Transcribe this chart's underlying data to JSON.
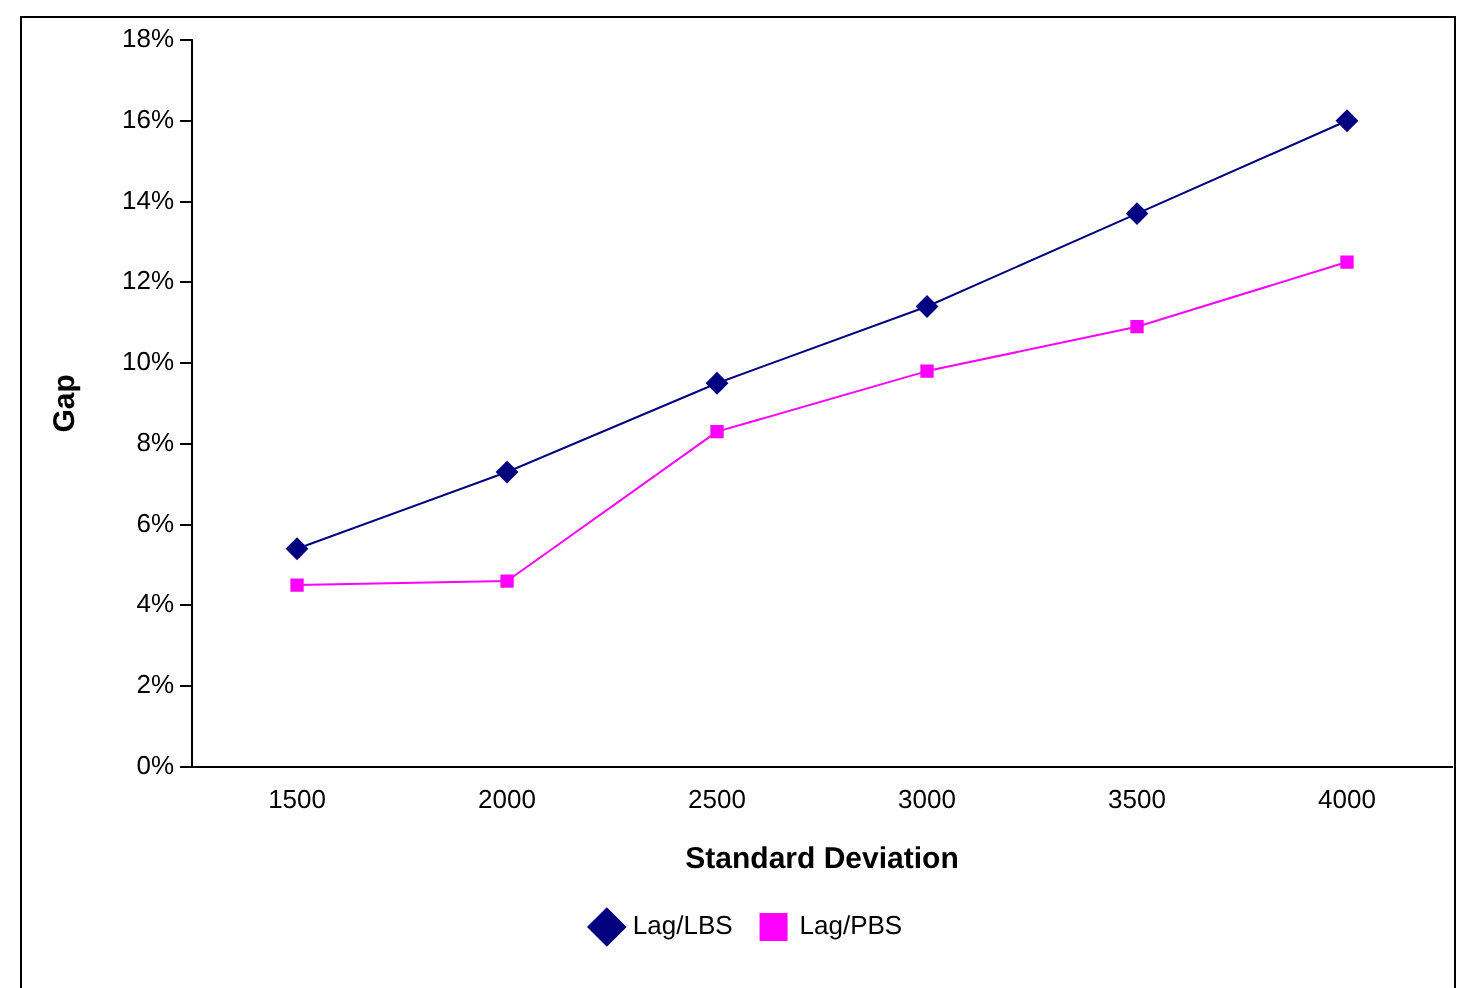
{
  "chart_data": {
    "type": "line",
    "xlabel": "Standard Deviation",
    "ylabel": "Gap",
    "categories": [
      "1500",
      "2000",
      "2500",
      "3000",
      "3500",
      "4000"
    ],
    "series": [
      {
        "name": "Lag/LBS",
        "color": "#000080",
        "marker": "diamond",
        "values": [
          5.4,
          7.3,
          9.5,
          11.4,
          13.7,
          16.0
        ]
      },
      {
        "name": "Lag/PBS",
        "color": "#ff00ff",
        "marker": "square",
        "values": [
          4.5,
          4.6,
          8.3,
          9.8,
          10.9,
          12.5
        ]
      }
    ],
    "ylim": [
      0,
      18
    ],
    "yticks": [
      {
        "value": 0,
        "label": "0%"
      },
      {
        "value": 2,
        "label": "2%"
      },
      {
        "value": 4,
        "label": "4%"
      },
      {
        "value": 6,
        "label": "6%"
      },
      {
        "value": 8,
        "label": "8%"
      },
      {
        "value": 10,
        "label": "10%"
      },
      {
        "value": 12,
        "label": "12%"
      },
      {
        "value": 14,
        "label": "14%"
      },
      {
        "value": 16,
        "label": "16%"
      },
      {
        "value": 18,
        "label": "18%"
      }
    ],
    "grid": false,
    "legend": "bottom",
    "line_style": "solid"
  }
}
